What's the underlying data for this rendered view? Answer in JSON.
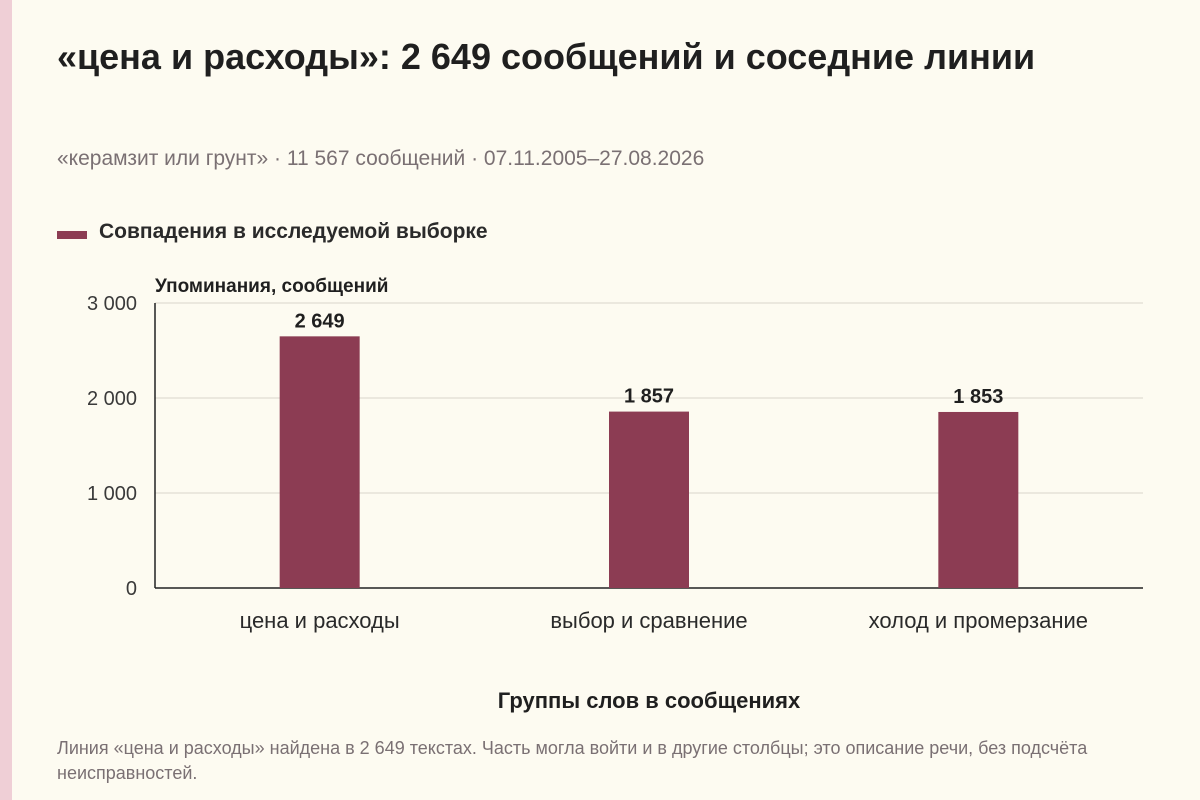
{
  "header": {
    "title": "«цена и расходы»: 2 649 сообщений и соседние линии",
    "subtitle": "«керамзит или грунт» · 11 567 сообщений · 07.11.2005–27.08.2026"
  },
  "legend": {
    "label": "Совпадения в исследуемой выборке",
    "color": "#8c3c53"
  },
  "chart_data": {
    "type": "bar",
    "ylabel": "Упоминания, сообщений",
    "xlabel": "Группы слов в сообщениях",
    "categories": [
      "цена и расходы",
      "выбор и сравнение",
      "холод и промерзание"
    ],
    "series": [
      {
        "name": "Совпадения в исследуемой выборке",
        "values": [
          2649,
          1857,
          1853
        ],
        "labels": [
          "2 649",
          "1 857",
          "1 853"
        ],
        "color": "#8c3c53"
      }
    ],
    "ylim": [
      0,
      3000
    ],
    "yticks": [
      0,
      1000,
      2000,
      3000
    ],
    "ytick_labels": [
      "0",
      "1 000",
      "2 000",
      "3 000"
    ],
    "grid": true,
    "legend_position": "top-left"
  },
  "footnote": "Линия «цена и расходы» найдена в 2 649 текстах. Часть могла войти и в другие столбцы; это описание речи, без подсчёта неисправностей."
}
